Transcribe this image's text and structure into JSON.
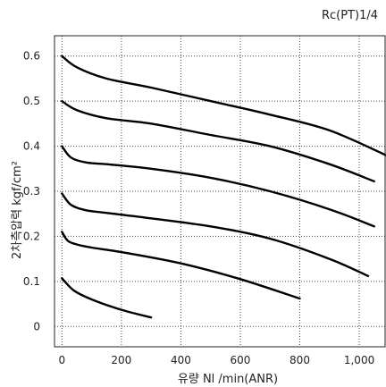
{
  "chart_data": {
    "type": "line",
    "subtitle": "Rc(PT)1/4",
    "xlabel": "유량 Nl /min(ANR)",
    "ylabel": "2차측압력 kgf/cm²",
    "xlim": [
      -25,
      1090
    ],
    "ylim": [
      -0.045,
      0.645
    ],
    "x_ticks": [
      0,
      200,
      400,
      600,
      800,
      1000
    ],
    "x_tick_labels": [
      "0",
      "200",
      "400",
      "600",
      "800",
      "1,000"
    ],
    "y_ticks": [
      0,
      0.1,
      0.2,
      0.3,
      0.4,
      0.5,
      0.6
    ],
    "y_tick_labels": [
      "0",
      "0.1",
      "0.2",
      "0.3",
      "0.4",
      "0.5",
      "0.6"
    ],
    "grid": true,
    "grid_style": "dotted",
    "line_color": "#000000",
    "series": [
      {
        "x": [
          0,
          40,
          100,
          200,
          300
        ],
        "y": [
          0.107,
          0.08,
          0.06,
          0.037,
          0.02
        ]
      },
      {
        "x": [
          0,
          20,
          50,
          100,
          200,
          400,
          600,
          800
        ],
        "y": [
          0.21,
          0.19,
          0.182,
          0.175,
          0.165,
          0.14,
          0.105,
          0.062
        ]
      },
      {
        "x": [
          0,
          30,
          80,
          150,
          300,
          500,
          700,
          900,
          1030
        ],
        "y": [
          0.295,
          0.27,
          0.258,
          0.252,
          0.24,
          0.222,
          0.195,
          0.15,
          0.112
        ]
      },
      {
        "x": [
          0,
          30,
          80,
          150,
          300,
          500,
          700,
          900,
          1050
        ],
        "y": [
          0.4,
          0.375,
          0.364,
          0.36,
          0.35,
          0.33,
          0.3,
          0.26,
          0.222
        ]
      },
      {
        "x": [
          0,
          50,
          150,
          300,
          500,
          700,
          900,
          1050
        ],
        "y": [
          0.5,
          0.48,
          0.462,
          0.45,
          0.425,
          0.4,
          0.36,
          0.322
        ]
      },
      {
        "x": [
          0,
          50,
          150,
          300,
          500,
          700,
          900,
          1090
        ],
        "y": [
          0.6,
          0.575,
          0.55,
          0.53,
          0.5,
          0.47,
          0.435,
          0.38
        ]
      }
    ]
  }
}
